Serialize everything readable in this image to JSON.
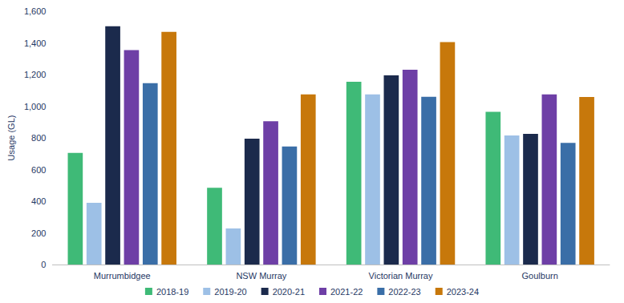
{
  "chart_data": {
    "type": "bar",
    "y_label": "Usage (GL)",
    "categories": [
      "Murrumbidgee",
      "NSW Murray",
      "Victorian Murray",
      "Goulburn"
    ],
    "series": [
      {
        "name": "2018-19",
        "color": "#3fba77",
        "values": [
          705,
          485,
          1155,
          965
        ]
      },
      {
        "name": "2019-20",
        "color": "#9dc0e6",
        "values": [
          390,
          228,
          1075,
          815
        ]
      },
      {
        "name": "2020-21",
        "color": "#1b2a4c",
        "values": [
          1505,
          795,
          1195,
          825
        ]
      },
      {
        "name": "2021-22",
        "color": "#6e3fa6",
        "values": [
          1355,
          905,
          1230,
          1075
        ]
      },
      {
        "name": "2022-23",
        "color": "#3a6ea7",
        "values": [
          1145,
          745,
          1060,
          768
        ]
      },
      {
        "name": "2023-24",
        "color": "#c7780b",
        "values": [
          1470,
          1075,
          1405,
          1058
        ]
      }
    ],
    "ylim": [
      0,
      1600
    ],
    "yticks": [
      0,
      200,
      400,
      600,
      800,
      {
        "value": 1000,
        "label": "1,000"
      },
      {
        "value": 1200,
        "label": "1,200"
      },
      {
        "value": 1400,
        "label": "1,400"
      },
      {
        "value": 1600,
        "label": "1,600"
      }
    ],
    "grid": false,
    "legend": "bottom"
  }
}
